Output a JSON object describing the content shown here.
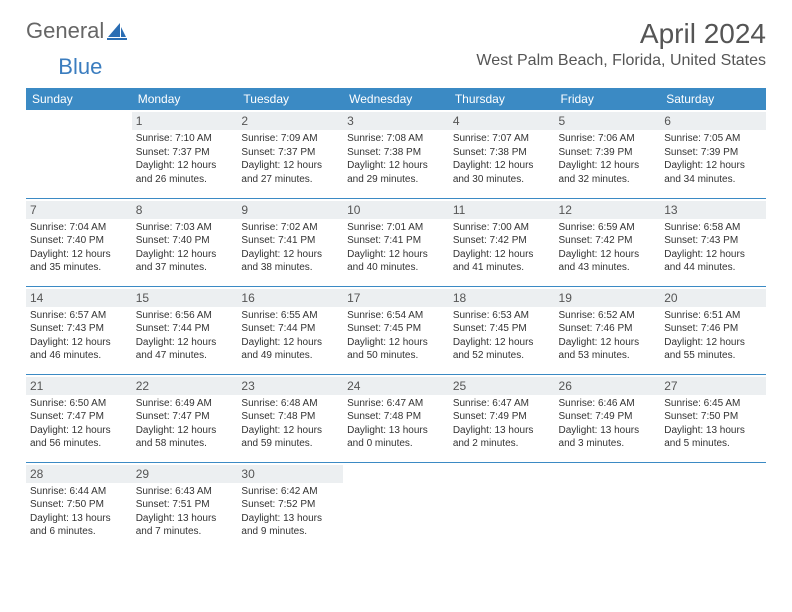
{
  "logo": {
    "text1": "General",
    "text2": "Blue"
  },
  "title": "April 2024",
  "location": "West Palm Beach, Florida, United States",
  "colors": {
    "header_bg": "#3b8ac4",
    "header_text": "#ffffff",
    "daynum_bg": "#eceff1",
    "border": "#3b8ac4",
    "text": "#333333",
    "title_color": "#555555"
  },
  "weekdays": [
    "Sunday",
    "Monday",
    "Tuesday",
    "Wednesday",
    "Thursday",
    "Friday",
    "Saturday"
  ],
  "first_weekday_offset": 1,
  "days": [
    {
      "n": 1,
      "sunrise": "7:10 AM",
      "sunset": "7:37 PM",
      "daylight": "12 hours and 26 minutes."
    },
    {
      "n": 2,
      "sunrise": "7:09 AM",
      "sunset": "7:37 PM",
      "daylight": "12 hours and 27 minutes."
    },
    {
      "n": 3,
      "sunrise": "7:08 AM",
      "sunset": "7:38 PM",
      "daylight": "12 hours and 29 minutes."
    },
    {
      "n": 4,
      "sunrise": "7:07 AM",
      "sunset": "7:38 PM",
      "daylight": "12 hours and 30 minutes."
    },
    {
      "n": 5,
      "sunrise": "7:06 AM",
      "sunset": "7:39 PM",
      "daylight": "12 hours and 32 minutes."
    },
    {
      "n": 6,
      "sunrise": "7:05 AM",
      "sunset": "7:39 PM",
      "daylight": "12 hours and 34 minutes."
    },
    {
      "n": 7,
      "sunrise": "7:04 AM",
      "sunset": "7:40 PM",
      "daylight": "12 hours and 35 minutes."
    },
    {
      "n": 8,
      "sunrise": "7:03 AM",
      "sunset": "7:40 PM",
      "daylight": "12 hours and 37 minutes."
    },
    {
      "n": 9,
      "sunrise": "7:02 AM",
      "sunset": "7:41 PM",
      "daylight": "12 hours and 38 minutes."
    },
    {
      "n": 10,
      "sunrise": "7:01 AM",
      "sunset": "7:41 PM",
      "daylight": "12 hours and 40 minutes."
    },
    {
      "n": 11,
      "sunrise": "7:00 AM",
      "sunset": "7:42 PM",
      "daylight": "12 hours and 41 minutes."
    },
    {
      "n": 12,
      "sunrise": "6:59 AM",
      "sunset": "7:42 PM",
      "daylight": "12 hours and 43 minutes."
    },
    {
      "n": 13,
      "sunrise": "6:58 AM",
      "sunset": "7:43 PM",
      "daylight": "12 hours and 44 minutes."
    },
    {
      "n": 14,
      "sunrise": "6:57 AM",
      "sunset": "7:43 PM",
      "daylight": "12 hours and 46 minutes."
    },
    {
      "n": 15,
      "sunrise": "6:56 AM",
      "sunset": "7:44 PM",
      "daylight": "12 hours and 47 minutes."
    },
    {
      "n": 16,
      "sunrise": "6:55 AM",
      "sunset": "7:44 PM",
      "daylight": "12 hours and 49 minutes."
    },
    {
      "n": 17,
      "sunrise": "6:54 AM",
      "sunset": "7:45 PM",
      "daylight": "12 hours and 50 minutes."
    },
    {
      "n": 18,
      "sunrise": "6:53 AM",
      "sunset": "7:45 PM",
      "daylight": "12 hours and 52 minutes."
    },
    {
      "n": 19,
      "sunrise": "6:52 AM",
      "sunset": "7:46 PM",
      "daylight": "12 hours and 53 minutes."
    },
    {
      "n": 20,
      "sunrise": "6:51 AM",
      "sunset": "7:46 PM",
      "daylight": "12 hours and 55 minutes."
    },
    {
      "n": 21,
      "sunrise": "6:50 AM",
      "sunset": "7:47 PM",
      "daylight": "12 hours and 56 minutes."
    },
    {
      "n": 22,
      "sunrise": "6:49 AM",
      "sunset": "7:47 PM",
      "daylight": "12 hours and 58 minutes."
    },
    {
      "n": 23,
      "sunrise": "6:48 AM",
      "sunset": "7:48 PM",
      "daylight": "12 hours and 59 minutes."
    },
    {
      "n": 24,
      "sunrise": "6:47 AM",
      "sunset": "7:48 PM",
      "daylight": "13 hours and 0 minutes."
    },
    {
      "n": 25,
      "sunrise": "6:47 AM",
      "sunset": "7:49 PM",
      "daylight": "13 hours and 2 minutes."
    },
    {
      "n": 26,
      "sunrise": "6:46 AM",
      "sunset": "7:49 PM",
      "daylight": "13 hours and 3 minutes."
    },
    {
      "n": 27,
      "sunrise": "6:45 AM",
      "sunset": "7:50 PM",
      "daylight": "13 hours and 5 minutes."
    },
    {
      "n": 28,
      "sunrise": "6:44 AM",
      "sunset": "7:50 PM",
      "daylight": "13 hours and 6 minutes."
    },
    {
      "n": 29,
      "sunrise": "6:43 AM",
      "sunset": "7:51 PM",
      "daylight": "13 hours and 7 minutes."
    },
    {
      "n": 30,
      "sunrise": "6:42 AM",
      "sunset": "7:52 PM",
      "daylight": "13 hours and 9 minutes."
    }
  ],
  "labels": {
    "sunrise": "Sunrise:",
    "sunset": "Sunset:",
    "daylight": "Daylight:"
  }
}
